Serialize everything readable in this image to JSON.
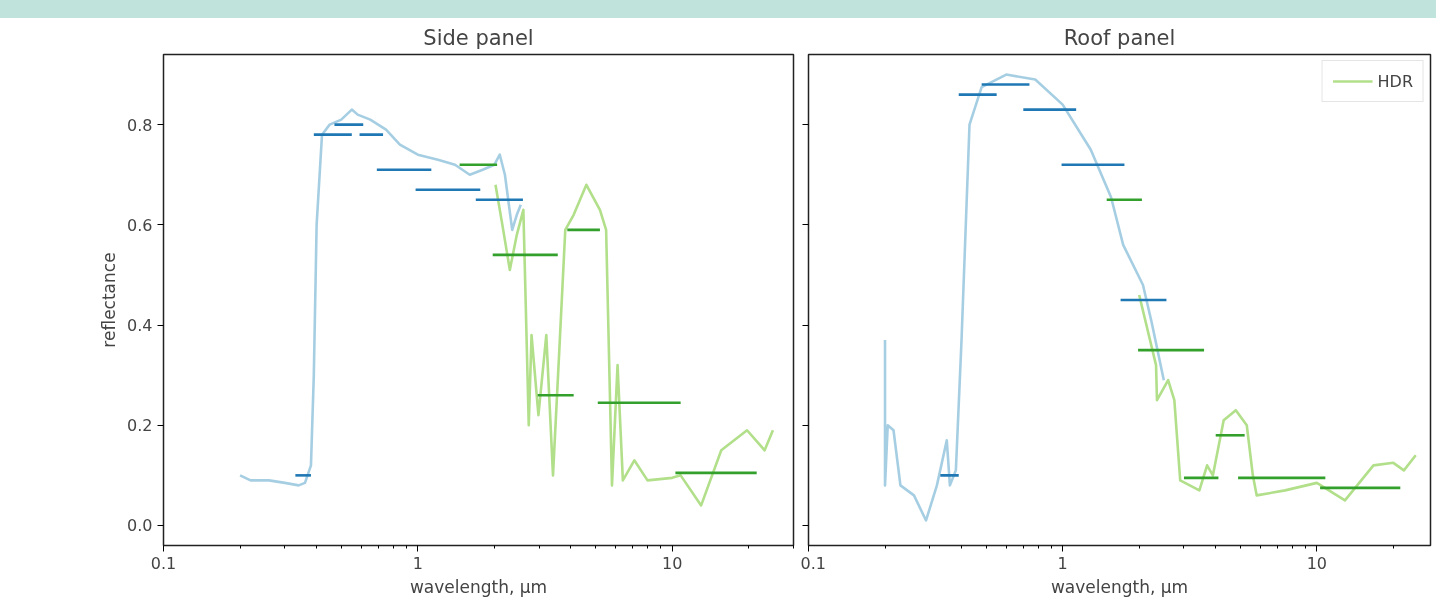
{
  "chart_data": [
    {
      "type": "line",
      "title": "Side panel",
      "xlabel": "wavelength, µm",
      "ylabel": "reflectance",
      "log": "x",
      "xlim": [
        0.1,
        30
      ],
      "xticks": [
        0.1,
        1,
        10
      ],
      "ylim": [
        -0.04,
        0.94
      ],
      "yticks": [
        {
          "value": 0,
          "label": "0.0"
        },
        0.2,
        0.4,
        0.6,
        0.8
      ],
      "grid": false,
      "legend": false,
      "series": [
        {
          "color": "#a6cee3",
          "x": [
            0.2,
            0.22,
            0.26,
            0.3,
            0.34,
            0.36,
            0.38,
            0.39,
            0.4,
            0.42,
            0.45,
            0.5,
            0.55,
            0.58,
            0.65,
            0.75,
            0.85,
            1.0,
            1.2,
            1.4,
            1.6,
            1.8,
            2.0,
            2.1,
            2.2,
            2.35,
            2.45,
            2.54
          ],
          "values": [
            0.1,
            0.09,
            0.09,
            0.085,
            0.08,
            0.085,
            0.12,
            0.3,
            0.6,
            0.78,
            0.8,
            0.81,
            0.83,
            0.82,
            0.81,
            0.79,
            0.76,
            0.74,
            0.73,
            0.72,
            0.7,
            0.71,
            0.72,
            0.74,
            0.7,
            0.59,
            0.62,
            0.64
          ]
        },
        {
          "color": "#b2df8a",
          "x": [
            2.02,
            2.15,
            2.3,
            2.45,
            2.6,
            2.73,
            2.8,
            2.98,
            3.2,
            3.4,
            3.6,
            3.8,
            4.1,
            4.6,
            5.2,
            5.5,
            5.8,
            6.1,
            6.4,
            7.1,
            8,
            10,
            10.8,
            13.0,
            15.6,
            19.7,
            23.1,
            24.9
          ],
          "values": [
            0.68,
            0.6,
            0.51,
            0.58,
            0.63,
            0.2,
            0.38,
            0.22,
            0.38,
            0.1,
            0.35,
            0.59,
            0.62,
            0.68,
            0.63,
            0.59,
            0.08,
            0.32,
            0.09,
            0.13,
            0.09,
            0.095,
            0.1,
            0.04,
            0.15,
            0.19,
            0.15,
            0.19
          ]
        },
        {
          "color": "#1f78b4",
          "x": [
            0.33,
            0.38
          ],
          "values": [
            0.1,
            0.1
          ]
        },
        {
          "color": "#1f78b4",
          "x": [
            0.39,
            0.55
          ],
          "values": [
            0.78,
            0.78
          ]
        },
        {
          "color": "#1f78b4",
          "x": [
            0.47,
            0.61
          ],
          "values": [
            0.8,
            0.8
          ]
        },
        {
          "color": "#1f78b4",
          "x": [
            0.59,
            0.73
          ],
          "values": [
            0.78,
            0.78
          ]
        },
        {
          "color": "#1f78b4",
          "x": [
            0.69,
            1.13
          ],
          "values": [
            0.71,
            0.71
          ]
        },
        {
          "color": "#1f78b4",
          "x": [
            0.98,
            1.76
          ],
          "values": [
            0.67,
            0.67
          ]
        },
        {
          "color": "#1f78b4",
          "x": [
            1.69,
            2.59
          ],
          "values": [
            0.65,
            0.65
          ]
        },
        {
          "color": "#33a02c",
          "x": [
            1.46,
            2.05
          ],
          "values": [
            0.72,
            0.72
          ]
        },
        {
          "color": "#33a02c",
          "x": [
            1.97,
            3.55
          ],
          "values": [
            0.54,
            0.54
          ]
        },
        {
          "color": "#33a02c",
          "x": [
            2.96,
            4.1
          ],
          "values": [
            0.26,
            0.26
          ]
        },
        {
          "color": "#33a02c",
          "x": [
            3.87,
            5.2
          ],
          "values": [
            0.59,
            0.59
          ]
        },
        {
          "color": "#33a02c",
          "x": [
            5.1,
            10.8
          ],
          "values": [
            0.245,
            0.245
          ]
        },
        {
          "color": "#33a02c",
          "x": [
            10.3,
            21.5
          ],
          "values": [
            0.105,
            0.105
          ]
        }
      ]
    },
    {
      "type": "line",
      "title": "Roof panel",
      "xlabel": "wavelength, µm",
      "log": "x",
      "xlim": [
        0.1,
        28
      ],
      "xticks": [
        0.1,
        1,
        10
      ],
      "ylim": [
        -0.04,
        0.94
      ],
      "yticks": [
        0,
        0.2,
        0.4,
        0.6,
        0.8
      ],
      "tick_labels": "x",
      "grid": false,
      "legend": "top right",
      "series": [
        {
          "color": "#a6cee3",
          "x": [
            0.2,
            0.2,
            0.205,
            0.216,
            0.23,
            0.26,
            0.29,
            0.32,
            0.35,
            0.36,
            0.38,
            0.4,
            0.43,
            0.48,
            0.6,
            0.78,
            1.0,
            1.29,
            1.55,
            1.73,
            2.07,
            2.24,
            2.5
          ],
          "values": [
            0.37,
            0.08,
            0.2,
            0.19,
            0.08,
            0.06,
            0.01,
            0.08,
            0.17,
            0.08,
            0.11,
            0.37,
            0.8,
            0.875,
            0.9,
            0.89,
            0.84,
            0.75,
            0.655,
            0.56,
            0.48,
            0.405,
            0.29
          ]
        },
        {
          "name": "HDR",
          "color": "#b2df8a",
          "x": [
            2.0,
            2.33,
            2.35,
            2.6,
            2.75,
            2.9,
            3.45,
            3.7,
            3.9,
            4.3,
            4.8,
            5.3,
            5.6,
            5.8,
            7.5,
            10.0,
            12.9,
            16.7,
            20,
            22,
            24.5
          ],
          "values": [
            0.46,
            0.32,
            0.25,
            0.29,
            0.25,
            0.09,
            0.07,
            0.12,
            0.1,
            0.21,
            0.23,
            0.2,
            0.1,
            0.06,
            0.07,
            0.085,
            0.05,
            0.12,
            0.125,
            0.11,
            0.14
          ]
        },
        {
          "color": "#1f78b4",
          "x": [
            0.33,
            0.39
          ],
          "values": [
            0.1,
            0.1
          ]
        },
        {
          "color": "#1f78b4",
          "x": [
            0.39,
            0.55
          ],
          "values": [
            0.86,
            0.86
          ]
        },
        {
          "color": "#1f78b4",
          "x": [
            0.48,
            0.74
          ],
          "values": [
            0.88,
            0.88
          ]
        },
        {
          "color": "#1f78b4",
          "x": [
            0.7,
            1.13
          ],
          "values": [
            0.83,
            0.83
          ]
        },
        {
          "color": "#1f78b4",
          "x": [
            0.99,
            1.75
          ],
          "values": [
            0.72,
            0.72
          ]
        },
        {
          "color": "#1f78b4",
          "x": [
            1.69,
            2.56
          ],
          "values": [
            0.45,
            0.45
          ]
        },
        {
          "color": "#33a02c",
          "x": [
            1.49,
            2.05
          ],
          "values": [
            0.65,
            0.65
          ]
        },
        {
          "color": "#33a02c",
          "x": [
            1.98,
            3.6
          ],
          "values": [
            0.35,
            0.35
          ]
        },
        {
          "color": "#33a02c",
          "x": [
            3.0,
            4.1
          ],
          "values": [
            0.095,
            0.095
          ]
        },
        {
          "color": "#33a02c",
          "x": [
            4.0,
            5.2
          ],
          "values": [
            0.18,
            0.18
          ]
        },
        {
          "color": "#33a02c",
          "x": [
            4.9,
            10.8
          ],
          "values": [
            0.095,
            0.095
          ]
        },
        {
          "color": "#33a02c",
          "x": [
            10.3,
            21.3
          ],
          "values": [
            0.075,
            0.075
          ]
        }
      ]
    }
  ]
}
